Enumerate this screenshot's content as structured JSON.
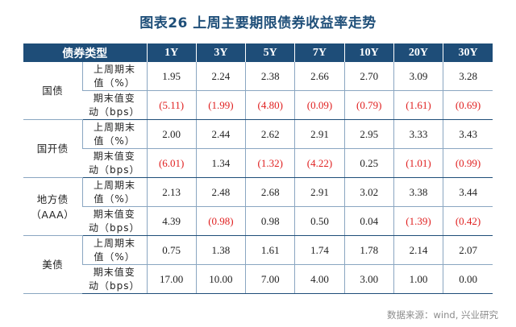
{
  "title": "图表26  上周主要期限债券收益率走势",
  "table": {
    "header_category": "债券类型",
    "tenors": [
      "1Y",
      "3Y",
      "5Y",
      "7Y",
      "10Y",
      "20Y",
      "30Y"
    ],
    "groups": [
      {
        "name_lines": [
          "国债"
        ],
        "rows": [
          {
            "metric_lines": [
              "上周期末",
              "值（%）"
            ],
            "values": [
              "1.95",
              "2.24",
              "2.38",
              "2.66",
              "2.70",
              "3.09",
              "3.28"
            ],
            "negative": [
              false,
              false,
              false,
              false,
              false,
              false,
              false
            ]
          },
          {
            "metric_lines": [
              "期末值变",
              "动（bps）"
            ],
            "values": [
              "(5.11)",
              "(1.99)",
              "(4.80)",
              "(0.09)",
              "(0.79)",
              "(1.61)",
              "(0.69)"
            ],
            "negative": [
              true,
              true,
              true,
              true,
              true,
              true,
              true
            ]
          }
        ]
      },
      {
        "name_lines": [
          "国开债"
        ],
        "rows": [
          {
            "metric_lines": [
              "上周期末",
              "值（%）"
            ],
            "values": [
              "2.00",
              "2.44",
              "2.62",
              "2.91",
              "2.95",
              "3.33",
              "3.43"
            ],
            "negative": [
              false,
              false,
              false,
              false,
              false,
              false,
              false
            ]
          },
          {
            "metric_lines": [
              "期末值变",
              "动（bps）"
            ],
            "values": [
              "(6.01)",
              "1.34",
              "(1.32)",
              "(4.22)",
              "0.25",
              "(1.01)",
              "(0.99)"
            ],
            "negative": [
              true,
              false,
              true,
              true,
              false,
              true,
              true
            ]
          }
        ]
      },
      {
        "name_lines": [
          "地方债",
          "（AAA）"
        ],
        "rows": [
          {
            "metric_lines": [
              "上周期末",
              "值（%）"
            ],
            "values": [
              "2.13",
              "2.48",
              "2.68",
              "2.91",
              "3.02",
              "3.38",
              "3.44"
            ],
            "negative": [
              false,
              false,
              false,
              false,
              false,
              false,
              false
            ]
          },
          {
            "metric_lines": [
              "期末值变",
              "动（bps）"
            ],
            "values": [
              "4.39",
              "(0.98)",
              "0.98",
              "0.50",
              "0.04",
              "(1.39)",
              "(0.42)"
            ],
            "negative": [
              false,
              true,
              false,
              false,
              false,
              true,
              true
            ]
          }
        ]
      },
      {
        "name_lines": [
          "美债"
        ],
        "rows": [
          {
            "metric_lines": [
              "上周期末",
              "值（%）"
            ],
            "values": [
              "0.75",
              "1.38",
              "1.61",
              "1.74",
              "1.78",
              "2.14",
              "2.07"
            ],
            "negative": [
              false,
              false,
              false,
              false,
              false,
              false,
              false
            ]
          },
          {
            "metric_lines": [
              "期末值变",
              "动（bps）"
            ],
            "values": [
              "17.00",
              "10.00",
              "7.00",
              "4.00",
              "3.00",
              "1.00",
              "0.00"
            ],
            "negative": [
              false,
              false,
              false,
              false,
              false,
              false,
              false
            ]
          }
        ]
      }
    ]
  },
  "colors": {
    "header_bg": "#1e4d78",
    "title": "#1f4f79",
    "negative": "#e02020"
  },
  "source": "数据来源：wind, 兴业研究"
}
